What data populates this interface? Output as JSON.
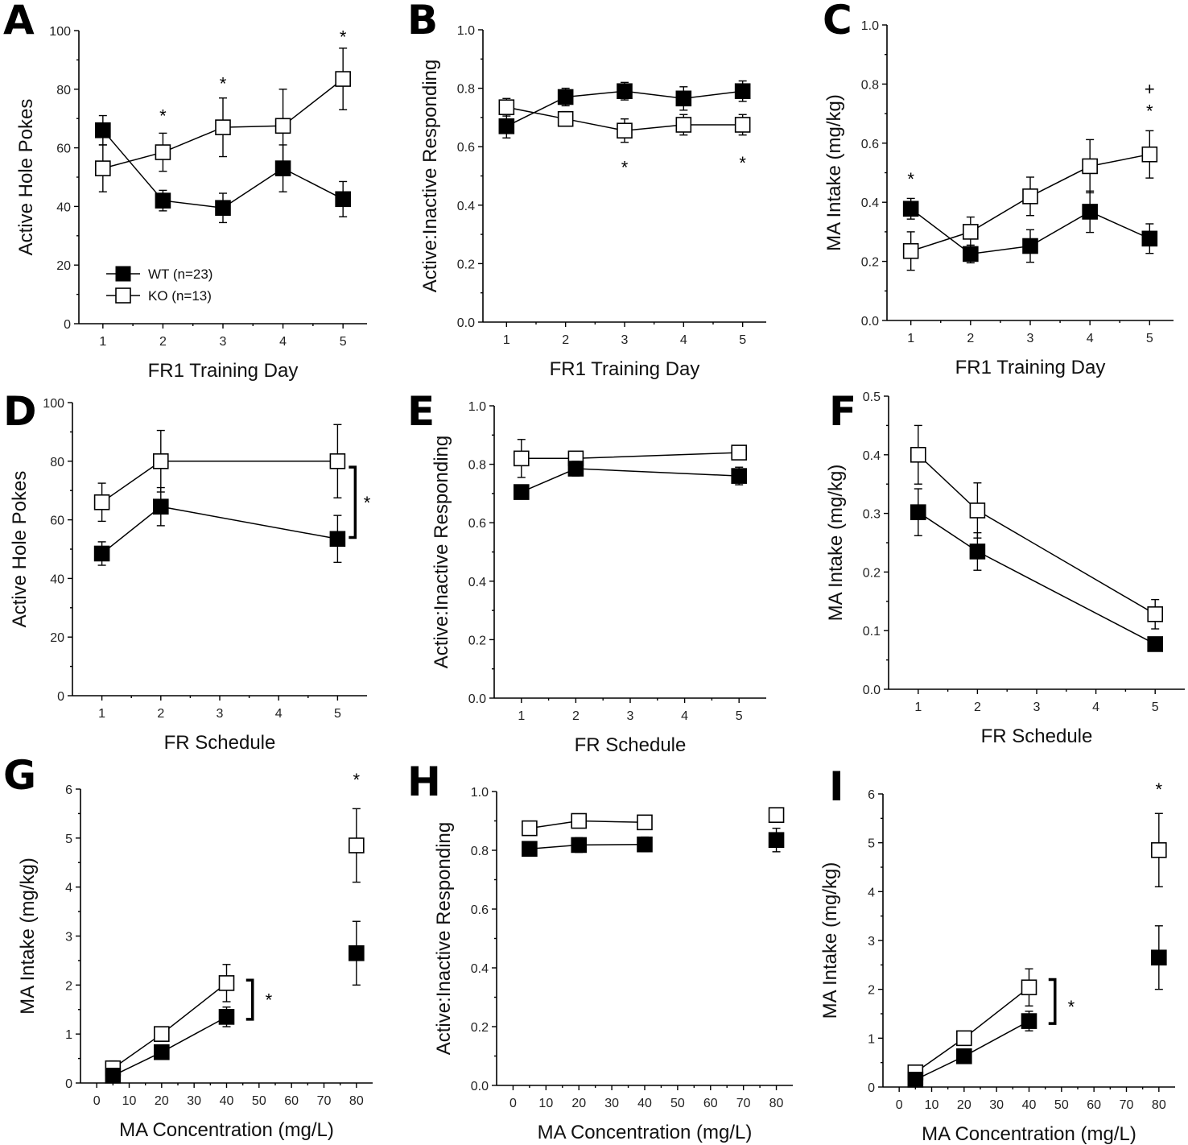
{
  "legend": {
    "wt_label": "WT (n=23)",
    "ko_label": "KO (n=13)"
  },
  "chart_data": [
    {
      "panel": "A",
      "type": "line",
      "xlabel": "FR1 Training Day",
      "ylabel": "Active Hole Pokes",
      "xlim": [
        0.6,
        5.4
      ],
      "ylim": [
        0,
        100
      ],
      "xticks": [
        1,
        2,
        3,
        4,
        5
      ],
      "yticks": [
        0,
        20,
        40,
        60,
        80,
        100
      ],
      "series": [
        {
          "name": "WT (n=23)",
          "marker": "filled-square",
          "x": [
            1,
            2,
            3,
            4,
            5
          ],
          "values": [
            66,
            42,
            39.5,
            53,
            42.5
          ],
          "err": [
            5,
            3.5,
            5,
            8,
            6
          ]
        },
        {
          "name": "KO (n=13)",
          "marker": "open-square",
          "x": [
            1,
            2,
            3,
            4,
            5
          ],
          "values": [
            53,
            58.5,
            67,
            67.5,
            83.5
          ],
          "err": [
            8,
            6.5,
            10,
            12.5,
            10.5
          ]
        }
      ],
      "annotations": [
        {
          "text": "*",
          "x": 2,
          "y": 71
        },
        {
          "text": "*",
          "x": 3,
          "y": 82
        },
        {
          "text": "*",
          "x": 5,
          "y": 98
        }
      ],
      "legend_position": "bottom-left"
    },
    {
      "panel": "B",
      "type": "line",
      "xlabel": "FR1 Training Day",
      "ylabel": "Active:Inactive Responding",
      "xlim": [
        0.6,
        5.4
      ],
      "ylim": [
        0,
        1.0
      ],
      "xticks": [
        1,
        2,
        3,
        4,
        5
      ],
      "yticks": [
        0.0,
        0.2,
        0.4,
        0.6,
        0.8,
        1.0
      ],
      "series": [
        {
          "name": "WT (n=23)",
          "marker": "filled-square",
          "x": [
            1,
            2,
            3,
            4,
            5
          ],
          "values": [
            0.67,
            0.77,
            0.79,
            0.765,
            0.79
          ],
          "err": [
            0.04,
            0.03,
            0.03,
            0.04,
            0.035
          ]
        },
        {
          "name": "KO (n=13)",
          "marker": "open-square",
          "x": [
            1,
            2,
            3,
            4,
            5
          ],
          "values": [
            0.735,
            0.695,
            0.655,
            0.675,
            0.675
          ],
          "err": [
            0.03,
            0.025,
            0.04,
            0.035,
            0.035
          ]
        }
      ],
      "annotations": [
        {
          "text": "*",
          "x": 3,
          "y": 0.53
        },
        {
          "text": "*",
          "x": 5,
          "y": 0.545
        }
      ]
    },
    {
      "panel": "C",
      "type": "line",
      "xlabel": "FR1 Training Day",
      "ylabel": "MA Intake (mg/kg)",
      "xlim": [
        0.6,
        5.4
      ],
      "ylim": [
        0,
        1.0
      ],
      "xticks": [
        1,
        2,
        3,
        4,
        5
      ],
      "yticks": [
        0.0,
        0.2,
        0.4,
        0.6,
        0.8,
        1.0
      ],
      "series": [
        {
          "name": "WT (n=23)",
          "marker": "filled-square",
          "x": [
            1,
            2,
            3,
            4,
            5
          ],
          "values": [
            0.378,
            0.225,
            0.252,
            0.368,
            0.277
          ],
          "err": [
            0.035,
            0.03,
            0.055,
            0.07,
            0.05
          ]
        },
        {
          "name": "KO (n=13)",
          "marker": "open-square",
          "x": [
            1,
            2,
            3,
            4,
            5
          ],
          "values": [
            0.235,
            0.3,
            0.42,
            0.522,
            0.562
          ],
          "err": [
            0.065,
            0.05,
            0.065,
            0.09,
            0.08
          ]
        }
      ],
      "annotations": [
        {
          "text": "*",
          "x": 1,
          "y": 0.48
        },
        {
          "text": "*",
          "x": 5,
          "y": 0.71
        },
        {
          "text": "+",
          "x": 5,
          "y": 0.785
        }
      ]
    },
    {
      "panel": "D",
      "type": "line",
      "xlabel": "FR Schedule",
      "ylabel": "Active Hole Pokes",
      "xlim": [
        0.5,
        5.5
      ],
      "ylim": [
        0,
        100
      ],
      "xticks": [
        1,
        2,
        3,
        4,
        5
      ],
      "yticks": [
        0,
        20,
        40,
        60,
        80,
        100
      ],
      "series": [
        {
          "name": "WT (n=23)",
          "marker": "filled-square",
          "x": [
            1,
            2,
            5
          ],
          "values": [
            48.5,
            64.5,
            53.5
          ],
          "err": [
            4,
            6.5,
            8
          ]
        },
        {
          "name": "KO (n=13)",
          "marker": "open-square",
          "x": [
            1,
            2,
            5
          ],
          "values": [
            66,
            80,
            80
          ],
          "err": [
            6.5,
            10.5,
            12.5
          ]
        }
      ],
      "annotations": [
        {
          "text": "*",
          "x": 5.5,
          "y": 66
        }
      ],
      "bracket": {
        "x": 5.3,
        "y1": 54,
        "y2": 78
      }
    },
    {
      "panel": "E",
      "type": "line",
      "xlabel": "FR Schedule",
      "ylabel": "Active:Inactive Responding",
      "xlim": [
        0.5,
        5.5
      ],
      "ylim": [
        0,
        1.0
      ],
      "xticks": [
        1,
        2,
        3,
        4,
        5
      ],
      "yticks": [
        0.0,
        0.2,
        0.4,
        0.6,
        0.8,
        1.0
      ],
      "series": [
        {
          "name": "WT (n=23)",
          "marker": "filled-square",
          "x": [
            1,
            2,
            5
          ],
          "values": [
            0.705,
            0.785,
            0.76
          ],
          "err": [
            0.02,
            0.025,
            0.03
          ]
        },
        {
          "name": "KO (n=13)",
          "marker": "open-square",
          "x": [
            1,
            2,
            5
          ],
          "values": [
            0.82,
            0.82,
            0.84
          ],
          "err": [
            0.065,
            0.02,
            0.02
          ]
        }
      ],
      "annotations": []
    },
    {
      "panel": "F",
      "type": "line",
      "xlabel": "FR Schedule",
      "ylabel": "MA Intake (mg/kg)",
      "xlim": [
        0.5,
        5.5
      ],
      "ylim": [
        0,
        0.5
      ],
      "xticks": [
        1,
        2,
        3,
        4,
        5
      ],
      "yticks": [
        0.0,
        0.1,
        0.2,
        0.3,
        0.4,
        0.5
      ],
      "series": [
        {
          "name": "WT (n=23)",
          "marker": "filled-square",
          "x": [
            1,
            2,
            5
          ],
          "values": [
            0.302,
            0.235,
            0.077
          ],
          "err": [
            0.04,
            0.032,
            0.012
          ]
        },
        {
          "name": "KO (n=13)",
          "marker": "open-square",
          "x": [
            1,
            2,
            5
          ],
          "values": [
            0.4,
            0.305,
            0.128
          ],
          "err": [
            0.05,
            0.047,
            0.025
          ]
        }
      ],
      "annotations": []
    },
    {
      "panel": "G",
      "type": "scatter-line",
      "xlabel": "MA Concentration (mg/L)",
      "ylabel": "MA Intake (mg/kg)",
      "xlim": [
        -5,
        85
      ],
      "ylim": [
        0,
        6
      ],
      "xticks": [
        0,
        10,
        20,
        30,
        40,
        50,
        60,
        70,
        80
      ],
      "yticks": [
        0,
        1,
        2,
        3,
        4,
        5,
        6
      ],
      "series": [
        {
          "name": "WT (n=23)",
          "marker": "filled-square",
          "x": [
            5,
            20,
            40,
            80
          ],
          "values": [
            0.15,
            0.63,
            1.35,
            2.65
          ],
          "err": [
            0.08,
            0.08,
            0.2,
            0.65
          ],
          "connect_through": 40
        },
        {
          "name": "KO (n=13)",
          "marker": "open-square",
          "x": [
            5,
            20,
            40,
            80
          ],
          "values": [
            0.3,
            1.0,
            2.04,
            4.85
          ],
          "err": [
            0.15,
            0.08,
            0.38,
            0.75
          ],
          "connect_through": 40
        }
      ],
      "annotations": [
        {
          "text": "*",
          "x": 80,
          "y": 6.2
        },
        {
          "text": "*",
          "x": 53,
          "y": 1.7
        }
      ],
      "bracket": {
        "x": 48,
        "y1": 1.3,
        "y2": 2.1
      }
    },
    {
      "panel": "H",
      "type": "scatter-line",
      "xlabel": "MA Concentration (mg/L)",
      "ylabel": "Active:Inactive Responding",
      "xlim": [
        -5,
        85
      ],
      "ylim": [
        0,
        1.0
      ],
      "xticks": [
        0,
        10,
        20,
        30,
        40,
        50,
        60,
        70,
        80
      ],
      "yticks": [
        0.0,
        0.2,
        0.4,
        0.6,
        0.8,
        1.0
      ],
      "series": [
        {
          "name": "WT (n=23)",
          "marker": "filled-square",
          "x": [
            5,
            20,
            40,
            80
          ],
          "values": [
            0.805,
            0.818,
            0.82,
            0.835
          ],
          "err": [
            0.02,
            0.025,
            0.025,
            0.04
          ],
          "connect_through": 40
        },
        {
          "name": "KO (n=13)",
          "marker": "open-square",
          "x": [
            5,
            20,
            40,
            80
          ],
          "values": [
            0.875,
            0.9,
            0.895,
            0.92
          ],
          "err": [
            0.02,
            0.015,
            0.015,
            0.02
          ],
          "connect_through": 40
        }
      ],
      "annotations": []
    },
    {
      "panel": "I",
      "type": "scatter-line",
      "xlabel": "MA Concentration (mg/L)",
      "ylabel": "MA Intake (mg/kg)",
      "xlim": [
        -5,
        85
      ],
      "ylim": [
        0,
        6
      ],
      "xticks": [
        0,
        10,
        20,
        30,
        40,
        50,
        60,
        70,
        80
      ],
      "yticks": [
        0,
        1,
        2,
        3,
        4,
        5,
        6
      ],
      "series": [
        {
          "name": "WT (n=23)",
          "marker": "filled-square",
          "x": [
            5,
            20,
            40,
            80
          ],
          "values": [
            0.15,
            0.63,
            1.35,
            2.65
          ],
          "err": [
            0.08,
            0.08,
            0.2,
            0.65
          ],
          "connect_through": 40
        },
        {
          "name": "KO (n=13)",
          "marker": "open-square",
          "x": [
            5,
            20,
            40,
            80
          ],
          "values": [
            0.3,
            1.0,
            2.04,
            4.85
          ],
          "err": [
            0.15,
            0.08,
            0.38,
            0.75
          ],
          "connect_through": 40
        }
      ],
      "annotations": [
        {
          "text": "*",
          "x": 80,
          "y": 6.1
        },
        {
          "text": "*",
          "x": 53,
          "y": 1.65
        }
      ],
      "bracket": {
        "x": 48,
        "y1": 1.3,
        "y2": 2.2
      }
    }
  ]
}
